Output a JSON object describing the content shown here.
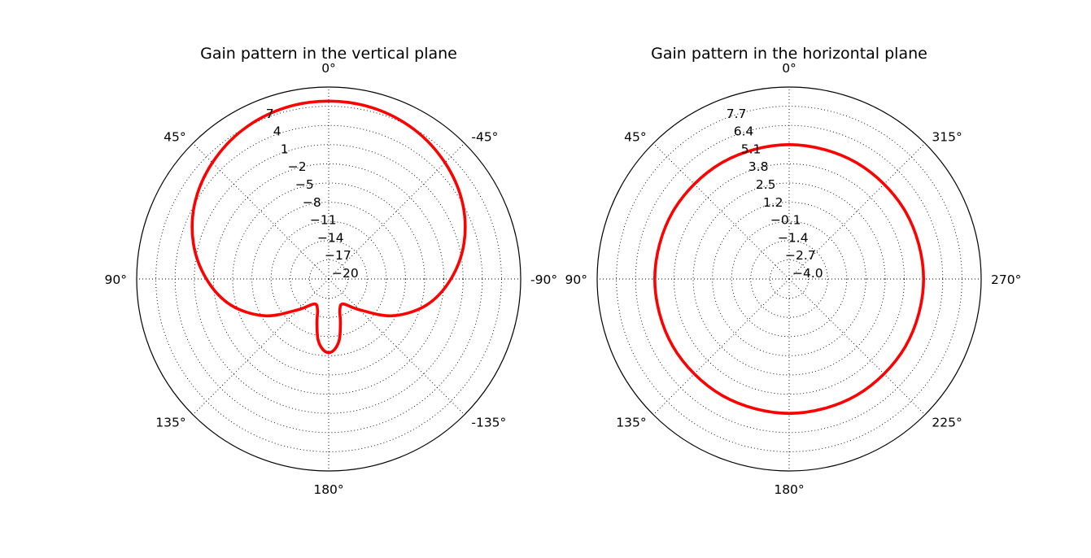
{
  "chart_data": [
    {
      "type": "polar-line",
      "title": "Gain pattern in the vertical plane",
      "angle_ticks": [
        {
          "deg": 0,
          "label": "0°"
        },
        {
          "deg": 45,
          "label": "45°"
        },
        {
          "deg": 90,
          "label": "90°"
        },
        {
          "deg": 135,
          "label": "135°"
        },
        {
          "deg": 180,
          "label": "180°"
        },
        {
          "deg": -135,
          "label": "-135°"
        },
        {
          "deg": -90,
          "label": "-90°"
        },
        {
          "deg": -45,
          "label": "-45°"
        }
      ],
      "theta_zero": "top",
      "theta_direction": "counterclockwise",
      "rlim": [
        -20,
        10
      ],
      "radial_ticks": [
        {
          "value": -20,
          "label": "−20"
        },
        {
          "value": -17,
          "label": "−17"
        },
        {
          "value": -14,
          "label": "−14"
        },
        {
          "value": -11,
          "label": "−11"
        },
        {
          "value": -8,
          "label": "−8"
        },
        {
          "value": -5,
          "label": "−5"
        },
        {
          "value": -2,
          "label": "−2"
        },
        {
          "value": 1,
          "label": "1"
        },
        {
          "value": 4,
          "label": "4"
        },
        {
          "value": 7,
          "label": "7"
        }
      ],
      "grid": true,
      "line_color": "#ff0000",
      "series": [
        {
          "theta_deg": [
            0,
            15,
            30,
            45,
            60,
            75,
            90,
            105,
            120,
            135,
            150,
            160,
            165,
            170,
            175,
            180,
            185,
            190,
            195,
            200,
            210,
            225,
            240,
            255,
            270,
            285,
            300,
            315,
            330,
            345,
            360
          ],
          "r": [
            7.8,
            7.6,
            6.9,
            5.7,
            4.1,
            1.9,
            -0.9,
            -4.2,
            -8.5,
            -13.2,
            -15.5,
            -14.9,
            -12.9,
            -10.4,
            -9.0,
            -8.5,
            -9.0,
            -10.4,
            -12.9,
            -14.9,
            -15.5,
            -13.2,
            -8.5,
            -4.2,
            -0.9,
            1.9,
            4.1,
            5.7,
            6.9,
            7.6,
            7.8
          ]
        }
      ]
    },
    {
      "type": "polar-line",
      "title": "Gain pattern in the horizontal plane",
      "angle_ticks": [
        {
          "deg": 0,
          "label": "0°"
        },
        {
          "deg": 45,
          "label": "45°"
        },
        {
          "deg": 90,
          "label": "90°"
        },
        {
          "deg": 135,
          "label": "135°"
        },
        {
          "deg": 180,
          "label": "180°"
        },
        {
          "deg": 225,
          "label": "225°"
        },
        {
          "deg": 270,
          "label": "270°"
        },
        {
          "deg": 315,
          "label": "315°"
        }
      ],
      "theta_zero": "top",
      "theta_direction": "counterclockwise",
      "rlim": [
        -4,
        9
      ],
      "radial_ticks": [
        {
          "value": -4.0,
          "label": "−4.0"
        },
        {
          "value": -2.7,
          "label": "−2.7"
        },
        {
          "value": -1.4,
          "label": "−1.4"
        },
        {
          "value": -0.1,
          "label": "−0.1"
        },
        {
          "value": 1.2,
          "label": "1.2"
        },
        {
          "value": 2.5,
          "label": "2.5"
        },
        {
          "value": 3.8,
          "label": "3.8"
        },
        {
          "value": 5.1,
          "label": "5.1"
        },
        {
          "value": 6.4,
          "label": "6.4"
        },
        {
          "value": 7.7,
          "label": "7.7"
        }
      ],
      "grid": true,
      "line_color": "#ff0000",
      "series": [
        {
          "theta_deg": [
            0,
            30,
            60,
            90,
            120,
            150,
            180,
            210,
            240,
            270,
            300,
            330,
            360
          ],
          "r": [
            5.1,
            5.1,
            5.1,
            5.1,
            5.1,
            5.1,
            5.1,
            5.1,
            5.1,
            5.1,
            5.1,
            5.1,
            5.1
          ]
        }
      ]
    }
  ]
}
